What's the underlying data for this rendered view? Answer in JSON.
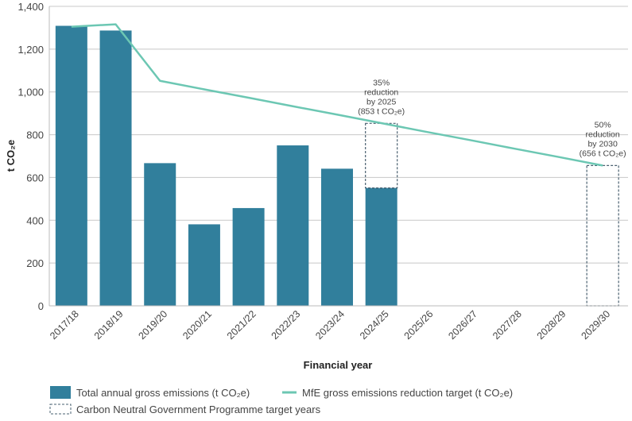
{
  "chart_data": {
    "type": "bar",
    "xlabel": "Financial year",
    "ylabel": "t CO₂e",
    "ylim": [
      0,
      1400
    ],
    "yticks": [
      0,
      200,
      400,
      600,
      800,
      1000,
      1200,
      1400
    ],
    "ytick_labels": [
      "0",
      "200",
      "400",
      "600",
      "800",
      "1,000",
      "1,200",
      "1,400"
    ],
    "grid": true,
    "categories": [
      "2017/18",
      "2018/19",
      "2019/20",
      "2020/21",
      "2021/22",
      "2022/23",
      "2023/24",
      "2024/25",
      "2025/26",
      "2026/27",
      "2027/28",
      "2028/29",
      "2029/30"
    ],
    "series": [
      {
        "name": "Total annual gross emissions (t CO₂e)",
        "type": "bar",
        "color": "#317f9c",
        "values": [
          1309,
          1287,
          667,
          381,
          457,
          750,
          641,
          551,
          null,
          null,
          null,
          null,
          null
        ]
      },
      {
        "name": "MfE gross emissions reduction target (t CO₂e)",
        "type": "line",
        "color": "#6cc7b3",
        "values": [
          1305,
          1316,
          1052,
          1012,
          973,
          933,
          894,
          854,
          814,
          775,
          735,
          696,
          656
        ]
      }
    ],
    "target_boxes": {
      "name": "Carbon Neutral Government Programme target years",
      "color": "#4a6070",
      "boxes": [
        {
          "category": "2024/25",
          "from": 551,
          "to": 853
        },
        {
          "category": "2029/30",
          "from": 0,
          "to": 656
        }
      ]
    },
    "annotations": [
      {
        "category": "2024/25",
        "value": 853,
        "lines": [
          "35%",
          "reduction",
          "by 2025",
          "(853 t CO₂e)"
        ]
      },
      {
        "category": "2029/30",
        "value": 656,
        "lines": [
          "50%",
          "reduction",
          "by 2030",
          "(656 t CO₂e)"
        ]
      }
    ],
    "legend_position": "bottom"
  }
}
